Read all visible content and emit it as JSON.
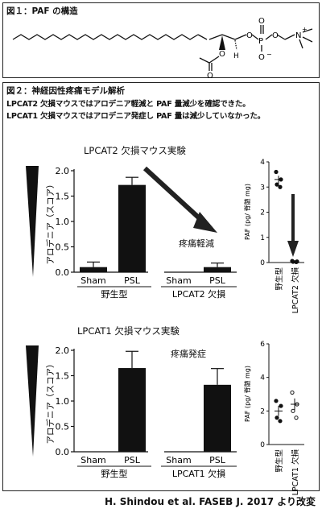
{
  "figure1": {
    "title": "図１：PAF の構造",
    "atoms": {
      "o_ester": "O",
      "h": "H",
      "o_carbonyl": "O",
      "o_p1": "O",
      "p": "P",
      "o_p_double": "O",
      "o_p_neg": "O",
      "o_minus": "−",
      "n_plus": "N",
      "plus": "+"
    }
  },
  "figure2": {
    "title": "図２：神経因性疼痛モデル解析",
    "line1": "LPCAT2 欠損マウスではアロデニア軽減と PAF 量減少を確認できた。",
    "line2": "LPCAT1 欠損マウスではアロデニア発症し PAF 量は減少していなかった。"
  },
  "experiment1": {
    "title": "LPCAT2 欠損マウス実験",
    "annotation": "疼痛軽減",
    "scatter_ylabel": "PAF (pg/ 脊髄 mg)"
  },
  "experiment2": {
    "title": "LPCAT1 欠損マウス実験",
    "annotation": "疼痛発症",
    "scatter_ylabel": "PAF (pg/ 脊髄 mg)"
  },
  "credit": "H. Shindou et al. FASEB J. 2017 より改変",
  "chart_data": [
    {
      "id": "lpcat2-bar",
      "type": "bar",
      "ylabel": "アロデニア（スコア）",
      "ylim": [
        0,
        2.0
      ],
      "yticks": [
        "0.0",
        "0.5",
        "1.0",
        "1.5",
        "2.0"
      ],
      "yticks_values": [
        0,
        0.5,
        1.0,
        1.5,
        2.0
      ],
      "categories": [
        "Sham",
        "PSL",
        "Sham",
        "PSL"
      ],
      "groups": [
        "野生型",
        "LPCAT2 欠損"
      ],
      "values": [
        0.1,
        1.72,
        0.0,
        0.1
      ],
      "errors": [
        0.1,
        0.15,
        0.0,
        0.08
      ]
    },
    {
      "id": "lpcat2-scatter",
      "type": "scatter",
      "ylim": [
        0,
        4
      ],
      "yticks": [
        "0",
        "1",
        "2",
        "3",
        "4"
      ],
      "yticks_values": [
        0,
        1,
        2,
        3,
        4
      ],
      "categories": [
        "野生型",
        "LPCAT2 欠損"
      ],
      "points": [
        [
          3.6,
          3.3,
          3.1,
          3.0
        ],
        [
          0.06,
          0.04,
          0.03,
          0.02
        ]
      ],
      "means": [
        3.3,
        0.04
      ],
      "sems": [
        0.15,
        0.02
      ],
      "marker": [
        "filled",
        "filled"
      ]
    },
    {
      "id": "lpcat1-bar",
      "type": "bar",
      "ylabel": "アロデニア（スコア）",
      "ylim": [
        0,
        2.0
      ],
      "yticks": [
        "0.0",
        "0.5",
        "1.0",
        "1.5",
        "2.0"
      ],
      "yticks_values": [
        0,
        0.5,
        1.0,
        1.5,
        2.0
      ],
      "categories": [
        "Sham",
        "PSL",
        "Sham",
        "PSL"
      ],
      "groups": [
        "野生型",
        "LPCAT1 欠損"
      ],
      "values": [
        0.0,
        1.65,
        0.0,
        1.32
      ],
      "errors": [
        0.0,
        0.33,
        0.0,
        0.32
      ]
    },
    {
      "id": "lpcat1-scatter",
      "type": "scatter",
      "ylim": [
        0,
        6
      ],
      "yticks": [
        "0",
        "2",
        "4",
        "6"
      ],
      "yticks_values": [
        0,
        2,
        4,
        6
      ],
      "categories": [
        "野生型",
        "LPCAT1 欠損"
      ],
      "points": [
        [
          2.6,
          2.3,
          1.6,
          1.4
        ],
        [
          3.1,
          2.4,
          2.0,
          1.6
        ]
      ],
      "means": [
        2.0,
        2.4
      ],
      "sems": [
        0.3,
        0.35
      ],
      "marker": [
        "filled",
        "open"
      ]
    }
  ]
}
